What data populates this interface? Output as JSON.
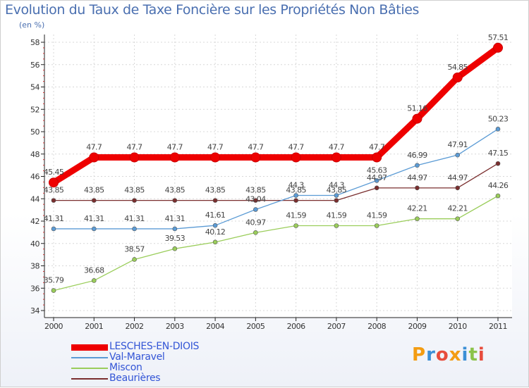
{
  "chart_data": {
    "type": "line",
    "title": "Evolution du Taux de Taxe Foncière sur les Propriétés Non Bâties",
    "ylabel": "(en %)",
    "xlabel": "",
    "categories": [
      "2000",
      "2001",
      "2002",
      "2003",
      "2004",
      "2005",
      "2006",
      "2007",
      "2008",
      "2009",
      "2010",
      "2011"
    ],
    "ylim": [
      34,
      58
    ],
    "yticks": [
      "34",
      "36",
      "38",
      "40",
      "42",
      "44",
      "46",
      "48",
      "50",
      "52",
      "54",
      "56",
      "58"
    ],
    "series": [
      {
        "name": "LESCHES-EN-DIOIS",
        "color": "#ee0000",
        "values": [
          45.45,
          47.7,
          47.7,
          47.7,
          47.7,
          47.7,
          47.7,
          47.7,
          47.7,
          51.16,
          54.85,
          57.51
        ],
        "labels": [
          "45.45",
          "47.7",
          "47.7",
          "47.7",
          "47.7",
          "47.7",
          "47.7",
          "47.7",
          "47.7",
          "51.16",
          "54.85",
          "57.51"
        ]
      },
      {
        "name": "Val-Maravel",
        "color": "#5b9bd5",
        "values": [
          41.31,
          41.31,
          41.31,
          41.31,
          41.61,
          43.04,
          44.3,
          44.3,
          45.63,
          46.99,
          47.91,
          50.23
        ],
        "labels": [
          "41.31",
          "41.31",
          "41.31",
          "41.31",
          "41.61",
          "43.04",
          "44.3",
          "44.3",
          "45.63",
          "46.99",
          "47.91",
          "50.23"
        ]
      },
      {
        "name": "Miscon",
        "color": "#9acd5a",
        "values": [
          35.79,
          36.68,
          38.57,
          39.53,
          40.12,
          40.97,
          41.59,
          41.59,
          41.59,
          42.21,
          42.21,
          44.26
        ],
        "labels": [
          "35.79",
          "36.68",
          "38.57",
          "39.53",
          "40.12",
          "40.97",
          "41.59",
          "41.59",
          "41.59",
          "42.21",
          "42.21",
          "44.26"
        ]
      },
      {
        "name": "Beaurières",
        "color": "#7a2e2e",
        "values": [
          43.85,
          43.85,
          43.85,
          43.85,
          43.85,
          43.85,
          43.85,
          43.85,
          44.97,
          44.97,
          44.97,
          47.15
        ],
        "labels": [
          "43.85",
          "43.85",
          "43.85",
          "43.85",
          "43.85",
          "43.85",
          "43.85",
          "43.85",
          "44.97",
          "44.97",
          "44.97",
          "47.15"
        ]
      }
    ]
  },
  "logo": {
    "text": "Proxiti",
    "colors": [
      "#f39c12",
      "#3b8fd6",
      "#e74c3c",
      "#f39c12",
      "#3b8fd6",
      "#8bc34a",
      "#e74c3c"
    ]
  }
}
